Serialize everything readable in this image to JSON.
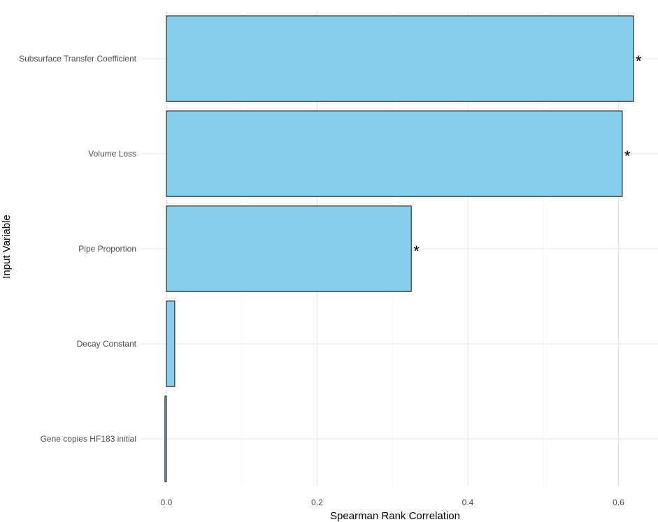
{
  "chart_data": {
    "type": "bar",
    "orientation": "horizontal",
    "xlabel": "Spearman Rank Correlation",
    "ylabel": "Input Variable",
    "xlim": [
      -0.003,
      0.655
    ],
    "x_ticks": [
      0.0,
      0.2,
      0.4,
      0.6
    ],
    "x_tick_labels": [
      "0.0",
      "0.2",
      "0.4",
      "0.6"
    ],
    "categories": [
      "Subsurface Transfer Coefficient",
      "Volume Loss",
      "Pipe Proportion",
      "Decay Constant",
      "Gene copies HF183 initial"
    ],
    "values": [
      0.62,
      0.605,
      0.325,
      0.011,
      -0.002
    ],
    "significance": [
      "*",
      "*",
      "*",
      "",
      ""
    ],
    "grid": true,
    "legend": "none",
    "colors": {
      "bar_fill": "#87ceeb",
      "bar_stroke": "#1a1a1a",
      "grid_major": "#e6e6e6",
      "grid_minor": "#f2f2f2"
    }
  }
}
